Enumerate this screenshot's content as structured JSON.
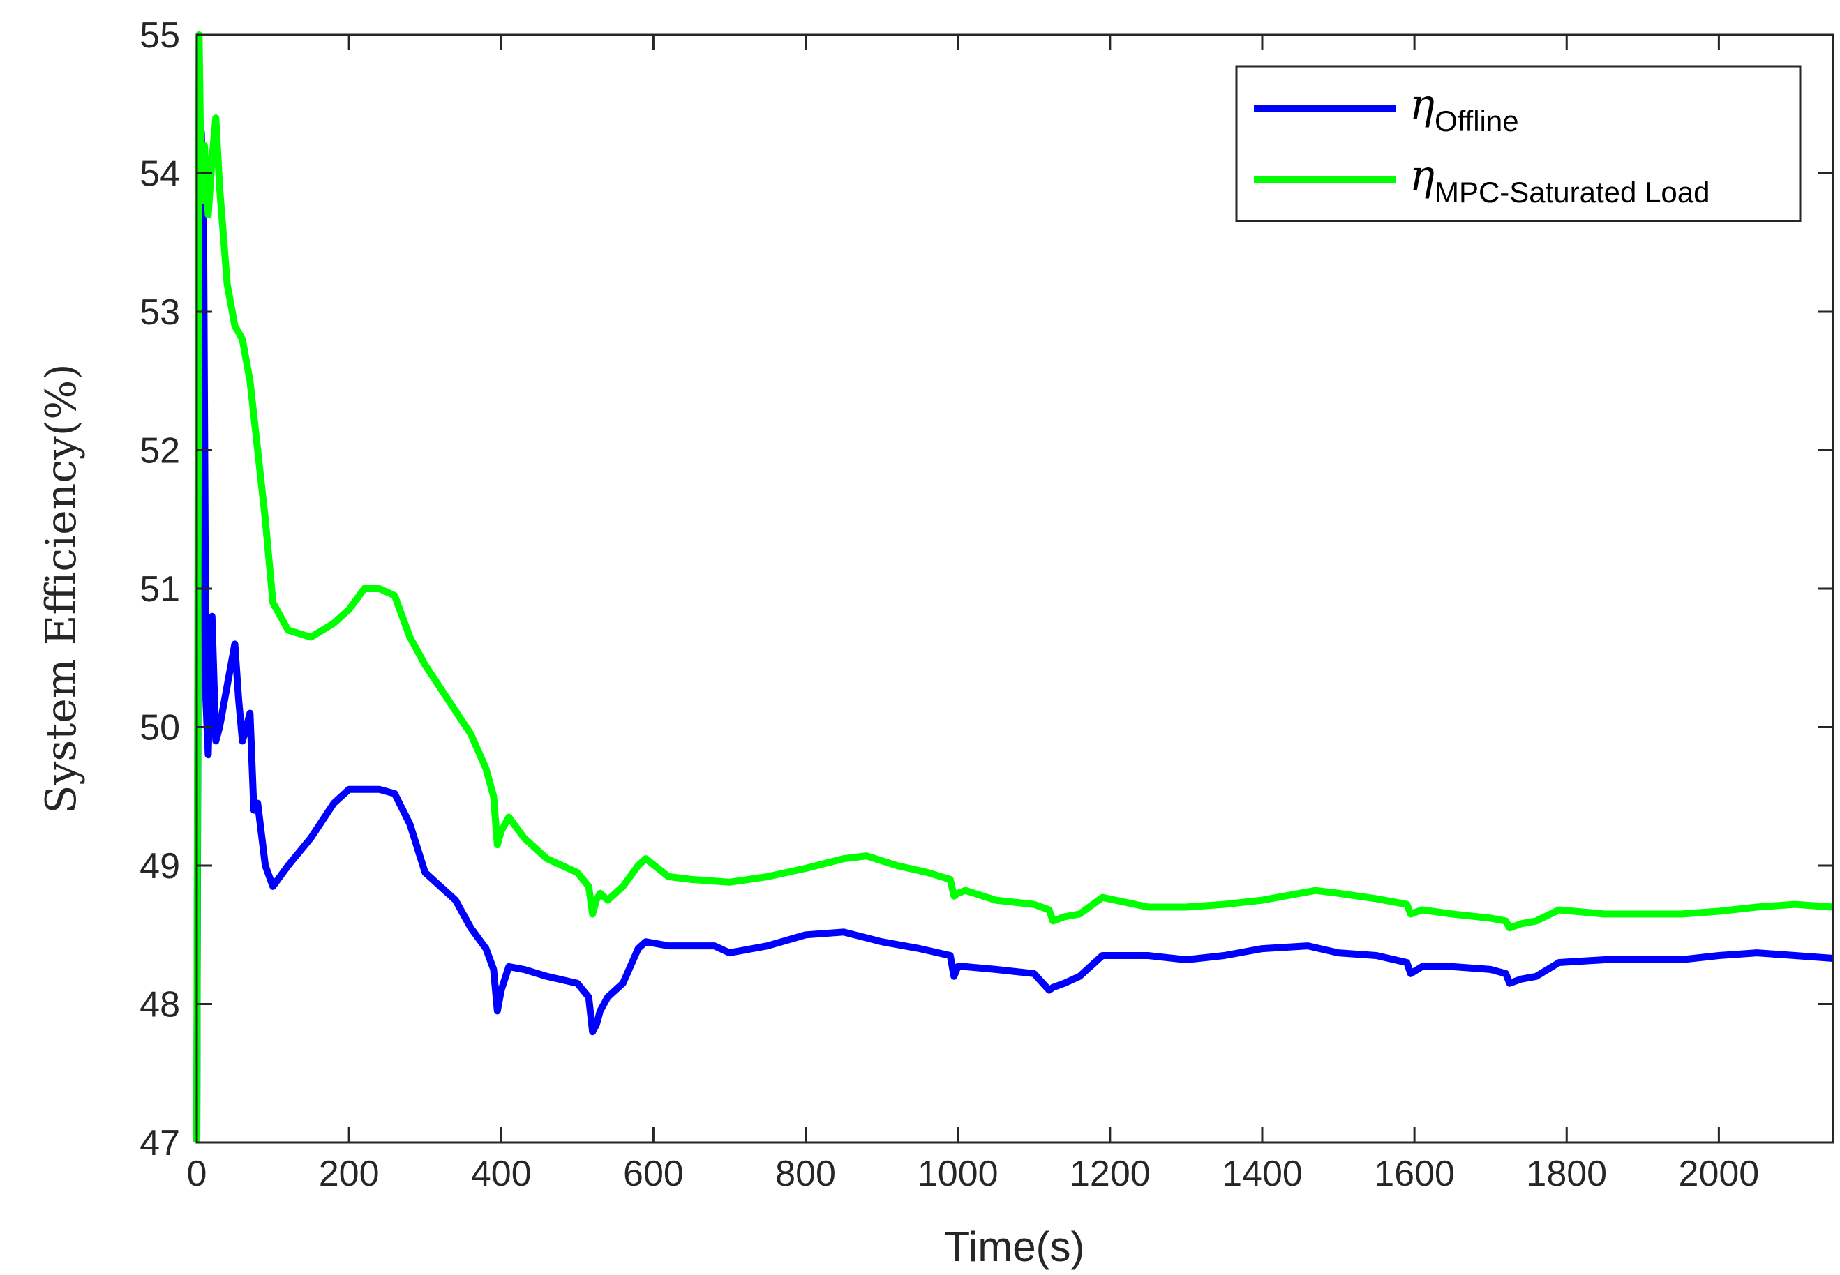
{
  "chart_data": {
    "type": "line",
    "title": "",
    "xlabel": "Time(s)",
    "ylabel": "System Efficiency(%)",
    "xlim": [
      0,
      2150
    ],
    "ylim": [
      47,
      55
    ],
    "xticks": [
      0,
      200,
      400,
      600,
      800,
      1000,
      1200,
      1400,
      1600,
      1800,
      2000
    ],
    "yticks": [
      47,
      48,
      49,
      50,
      51,
      52,
      53,
      54,
      55
    ],
    "grid": false,
    "legend_position": "top-right",
    "series": [
      {
        "name_symbol": "η",
        "name_subscript": "Offline",
        "color": "#0000ff",
        "x": [
          0,
          3,
          6,
          9,
          12,
          15,
          20,
          25,
          30,
          40,
          50,
          55,
          60,
          65,
          70,
          75,
          80,
          90,
          100,
          120,
          150,
          180,
          200,
          220,
          240,
          260,
          280,
          300,
          320,
          340,
          360,
          380,
          390,
          395,
          400,
          410,
          430,
          460,
          500,
          515,
          520,
          525,
          530,
          540,
          560,
          580,
          590,
          620,
          680,
          700,
          750,
          800,
          850,
          900,
          950,
          990,
          995,
          1000,
          1010,
          1050,
          1100,
          1120,
          1125,
          1140,
          1160,
          1190,
          1250,
          1300,
          1350,
          1400,
          1460,
          1500,
          1550,
          1590,
          1595,
          1610,
          1650,
          1700,
          1720,
          1725,
          1740,
          1760,
          1790,
          1850,
          1900,
          1950,
          2000,
          2050,
          2100,
          2150
        ],
        "y": [
          47.0,
          53.5,
          54.3,
          53.6,
          50.2,
          49.8,
          50.8,
          49.9,
          50.0,
          50.3,
          50.6,
          50.2,
          49.9,
          50.0,
          50.1,
          49.4,
          49.45,
          49.0,
          48.85,
          49.0,
          49.2,
          49.45,
          49.55,
          49.55,
          49.55,
          49.52,
          49.3,
          48.95,
          48.85,
          48.75,
          48.55,
          48.4,
          48.25,
          47.95,
          48.1,
          48.27,
          48.25,
          48.2,
          48.15,
          48.05,
          47.8,
          47.85,
          47.95,
          48.05,
          48.15,
          48.4,
          48.45,
          48.42,
          48.42,
          48.37,
          48.42,
          48.5,
          48.52,
          48.45,
          48.4,
          48.35,
          48.2,
          48.27,
          48.27,
          48.25,
          48.22,
          48.1,
          48.12,
          48.15,
          48.2,
          48.35,
          48.35,
          48.32,
          48.35,
          48.4,
          48.42,
          48.37,
          48.35,
          48.3,
          48.22,
          48.27,
          48.27,
          48.25,
          48.22,
          48.15,
          48.18,
          48.2,
          48.3,
          48.32,
          48.32,
          48.32,
          48.35,
          48.37,
          48.35,
          48.33
        ]
      },
      {
        "name_symbol": "η",
        "name_subscript": "MPC-Saturated Load",
        "color": "#00ff00",
        "x": [
          0,
          3,
          6,
          10,
          15,
          20,
          25,
          30,
          40,
          50,
          60,
          70,
          80,
          90,
          100,
          120,
          150,
          180,
          200,
          220,
          240,
          260,
          280,
          300,
          330,
          360,
          380,
          390,
          395,
          400,
          410,
          430,
          460,
          500,
          515,
          520,
          525,
          530,
          540,
          560,
          580,
          590,
          620,
          650,
          700,
          750,
          800,
          850,
          880,
          920,
          960,
          990,
          995,
          1000,
          1010,
          1050,
          1100,
          1120,
          1125,
          1140,
          1160,
          1190,
          1250,
          1300,
          1350,
          1400,
          1470,
          1500,
          1550,
          1590,
          1595,
          1610,
          1650,
          1700,
          1720,
          1725,
          1740,
          1760,
          1790,
          1850,
          1900,
          1950,
          2000,
          2050,
          2100,
          2150
        ],
        "y": [
          47.0,
          55.0,
          53.8,
          54.2,
          53.7,
          54.1,
          54.4,
          53.9,
          53.2,
          52.9,
          52.8,
          52.5,
          52.0,
          51.5,
          50.9,
          50.7,
          50.65,
          50.75,
          50.85,
          51.0,
          51.0,
          50.95,
          50.65,
          50.45,
          50.2,
          49.95,
          49.7,
          49.5,
          49.15,
          49.25,
          49.35,
          49.2,
          49.05,
          48.95,
          48.85,
          48.65,
          48.75,
          48.8,
          48.75,
          48.85,
          49.0,
          49.05,
          48.92,
          48.9,
          48.88,
          48.92,
          48.98,
          49.05,
          49.07,
          49.0,
          48.95,
          48.9,
          48.78,
          48.8,
          48.82,
          48.75,
          48.72,
          48.68,
          48.6,
          48.63,
          48.65,
          48.77,
          48.7,
          48.7,
          48.72,
          48.75,
          48.82,
          48.8,
          48.76,
          48.72,
          48.65,
          48.68,
          48.65,
          48.62,
          48.6,
          48.55,
          48.58,
          48.6,
          48.68,
          48.65,
          48.65,
          48.65,
          48.67,
          48.7,
          48.72,
          48.7
        ]
      }
    ]
  }
}
